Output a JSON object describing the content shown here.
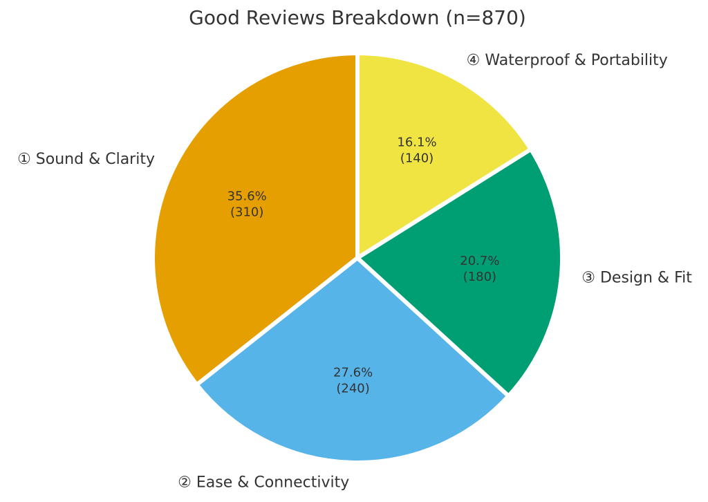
{
  "chart_data": {
    "type": "pie",
    "title": "Good Reviews Breakdown (n=870)",
    "categories": [
      "① Sound & Clarity",
      "② Ease & Connectivity",
      "③ Design & Fit",
      "④ Waterproof & Portability"
    ],
    "values": [
      310,
      240,
      180,
      140
    ],
    "percent_labels": [
      "35.6%",
      "27.6%",
      "20.7%",
      "16.1%"
    ],
    "value_labels": [
      "(310)",
      "(240)",
      "(180)",
      "(140)"
    ],
    "colors": [
      "#e69f00",
      "#56b4e9",
      "#009e73",
      "#f0e442"
    ]
  }
}
